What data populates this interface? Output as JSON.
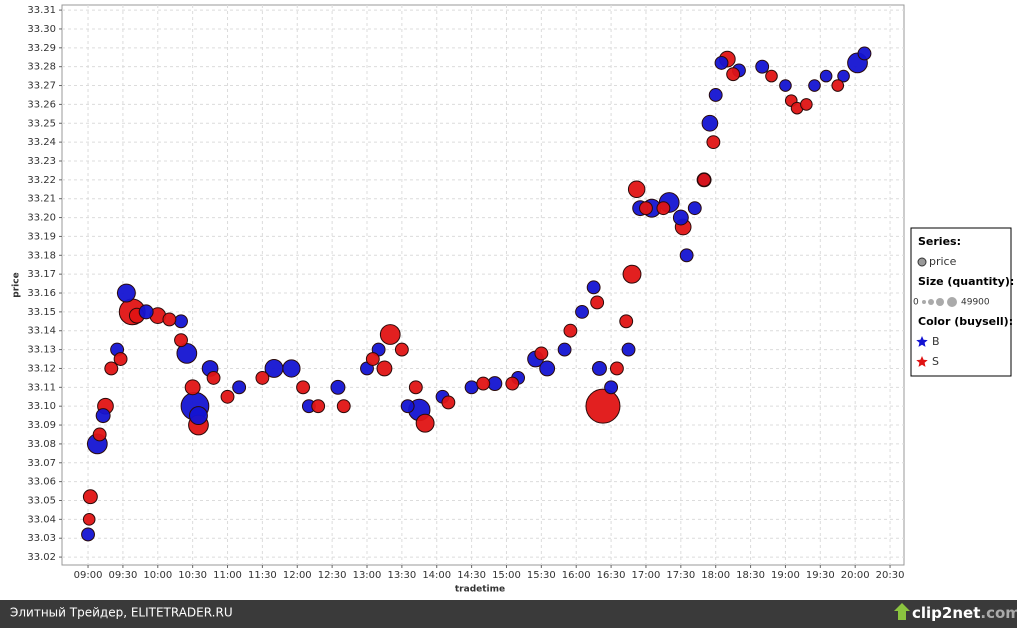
{
  "chart_data": {
    "type": "scatter",
    "y_label": "price",
    "x_label": "tradetime",
    "xlim": [
      517.6,
      1242
    ],
    "ylim": [
      33.0158,
      33.3127
    ],
    "grid": true,
    "xticks": [
      {
        "value": 540,
        "label": "09:00"
      },
      {
        "value": 570,
        "label": "09:30"
      },
      {
        "value": 600,
        "label": "10:00"
      },
      {
        "value": 630,
        "label": "10:30"
      },
      {
        "value": 660,
        "label": "11:00"
      },
      {
        "value": 690,
        "label": "11:30"
      },
      {
        "value": 720,
        "label": "12:00"
      },
      {
        "value": 750,
        "label": "12:30"
      },
      {
        "value": 780,
        "label": "13:00"
      },
      {
        "value": 810,
        "label": "13:30"
      },
      {
        "value": 840,
        "label": "14:00"
      },
      {
        "value": 870,
        "label": "14:30"
      },
      {
        "value": 900,
        "label": "15:00"
      },
      {
        "value": 930,
        "label": "15:30"
      },
      {
        "value": 960,
        "label": "16:00"
      },
      {
        "value": 990,
        "label": "16:30"
      },
      {
        "value": 1020,
        "label": "17:00"
      },
      {
        "value": 1050,
        "label": "17:30"
      },
      {
        "value": 1080,
        "label": "18:00"
      },
      {
        "value": 1110,
        "label": "18:30"
      },
      {
        "value": 1140,
        "label": "19:00"
      },
      {
        "value": 1170,
        "label": "19:30"
      },
      {
        "value": 1200,
        "label": "20:00"
      },
      {
        "value": 1230,
        "label": "20:30"
      }
    ],
    "yticks": [
      33.02,
      33.03,
      33.04,
      33.05,
      33.06,
      33.07,
      33.08,
      33.09,
      {
        "value": 33.1,
        "label": "33.10"
      },
      33.11,
      33.12,
      33.13,
      33.14,
      33.15,
      33.16,
      33.17,
      33.18,
      33.19,
      {
        "value": 33.2,
        "label": "33.20"
      },
      33.21,
      33.22,
      33.23,
      33.24,
      33.25,
      33.26,
      33.27,
      33.28,
      33.29,
      {
        "value": 33.3,
        "label": "33.30"
      },
      33.31
    ],
    "legend": {
      "series_title": "Series:",
      "series_label": "price",
      "size_title": "Size (quantity):",
      "size_range": [
        0,
        49900
      ],
      "color_title": "Color (buysell):"
    },
    "series": [
      {
        "name": "B",
        "color": "#1414d2",
        "x": [
          540,
          548,
          553,
          565,
          573,
          590,
          620,
          625,
          632,
          635,
          645,
          670,
          700,
          715,
          730,
          755,
          780,
          790,
          815,
          825,
          845,
          870,
          890,
          910,
          925,
          935,
          950,
          965,
          975,
          980,
          990,
          1005,
          1015,
          1025,
          1040,
          1050,
          1055,
          1062,
          1070,
          1075,
          1080,
          1085,
          1100,
          1120,
          1140,
          1165,
          1175,
          1190,
          1202,
          1208
        ],
        "values": [
          33.032,
          33.08,
          33.095,
          33.13,
          33.16,
          33.15,
          33.145,
          33.128,
          33.1,
          33.095,
          33.12,
          33.11,
          33.12,
          33.12,
          33.1,
          33.11,
          33.12,
          33.13,
          33.1,
          33.098,
          33.105,
          33.11,
          33.112,
          33.115,
          33.125,
          33.12,
          33.13,
          33.15,
          33.163,
          33.12,
          33.11,
          33.13,
          33.205,
          33.205,
          33.208,
          33.2,
          33.18,
          33.205,
          33.22,
          33.25,
          33.265,
          33.282,
          33.278,
          33.28,
          33.27,
          33.27,
          33.275,
          33.275,
          33.282,
          33.287
        ],
        "sizes": [
          3000,
          12000,
          4000,
          3000,
          9000,
          4000,
          3000,
          12000,
          30000,
          9000,
          6000,
          3000,
          9000,
          8000,
          3000,
          4000,
          3000,
          3000,
          3000,
          15000,
          3000,
          3000,
          4000,
          3000,
          6000,
          5000,
          3000,
          3000,
          3000,
          4000,
          3000,
          3000,
          5000,
          9000,
          12000,
          5000,
          3000,
          3000,
          4000,
          6000,
          3000,
          3000,
          3000,
          3000,
          2000,
          2000,
          2000,
          2000,
          12000,
          3000
        ]
      },
      {
        "name": "S",
        "color": "#e01414",
        "x": [
          541,
          542,
          550,
          555,
          560,
          568,
          578,
          582,
          600,
          610,
          620,
          630,
          635,
          648,
          660,
          690,
          725,
          738,
          760,
          785,
          795,
          800,
          810,
          822,
          830,
          850,
          880,
          905,
          930,
          955,
          978,
          983,
          995,
          1003,
          1008,
          1012,
          1020,
          1035,
          1052,
          1070,
          1078,
          1090,
          1095,
          1128,
          1145,
          1150,
          1158,
          1185
        ],
        "values": [
          33.04,
          33.052,
          33.085,
          33.1,
          33.12,
          33.125,
          33.15,
          33.148,
          33.148,
          33.146,
          33.135,
          33.11,
          33.09,
          33.115,
          33.105,
          33.115,
          33.11,
          33.1,
          33.1,
          33.125,
          33.12,
          33.138,
          33.13,
          33.11,
          33.091,
          33.102,
          33.112,
          33.112,
          33.128,
          33.14,
          33.155,
          33.1,
          33.12,
          33.145,
          33.17,
          33.215,
          33.205,
          33.205,
          33.195,
          33.22,
          33.24,
          33.284,
          33.276,
          33.275,
          33.262,
          33.258,
          33.26,
          33.27
        ],
        "sizes": [
          2000,
          4000,
          3000,
          6000,
          3000,
          3000,
          25000,
          5000,
          6000,
          3000,
          3000,
          5000,
          12000,
          3000,
          3000,
          3000,
          3000,
          3000,
          3000,
          3000,
          5000,
          12000,
          3000,
          3000,
          9000,
          3000,
          3000,
          3000,
          3000,
          3000,
          3000,
          49900,
          3000,
          3000,
          9000,
          7000,
          3000,
          3000,
          6000,
          3000,
          3000,
          6000,
          3000,
          2000,
          2000,
          2000,
          2000,
          2000
        ]
      }
    ]
  },
  "footer": {
    "text": "Элитный Трейдер, ELITETRADER.RU",
    "logo": [
      "clip2net",
      ".com"
    ]
  }
}
